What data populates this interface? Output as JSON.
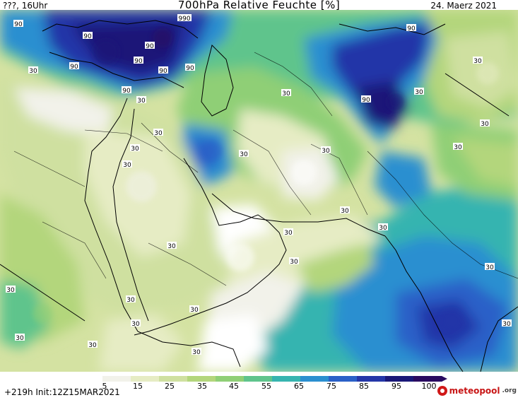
{
  "header": {
    "left": "???, 16Uhr",
    "title": "700hPa Relative Feuchte [%]",
    "date": "24. Maerz 2021"
  },
  "footer": {
    "run_info": "+219h  Init:12Z15MAR2021",
    "logo_text": "meteopool",
    "logo_tld": ".org"
  },
  "scale": {
    "ticks": [
      "5",
      "15",
      "25",
      "35",
      "45",
      "55",
      "65",
      "75",
      "85",
      "95",
      "100"
    ],
    "colors": [
      "#ffffff",
      "#f2f2ea",
      "#e6ecc4",
      "#cfe0a0",
      "#b3d67c",
      "#8fcf76",
      "#5fc48c",
      "#36b4b0",
      "#2b8fd0",
      "#2a60c8",
      "#2436a8",
      "#1a1878",
      "#2a0a60"
    ]
  },
  "contour_labels": [
    {
      "text": "90"
    },
    {
      "text": "990"
    },
    {
      "text": "90"
    },
    {
      "text": "90"
    },
    {
      "text": "90"
    },
    {
      "text": "90"
    },
    {
      "text": "90"
    },
    {
      "text": "90"
    },
    {
      "text": "90"
    },
    {
      "text": "90"
    },
    {
      "text": "90"
    },
    {
      "text": "30"
    },
    {
      "text": "30"
    },
    {
      "text": "30"
    },
    {
      "text": "30"
    },
    {
      "text": "30"
    },
    {
      "text": "30"
    },
    {
      "text": "30"
    },
    {
      "text": "30"
    },
    {
      "text": "30"
    },
    {
      "text": "30"
    },
    {
      "text": "30"
    },
    {
      "text": "30"
    },
    {
      "text": "30"
    },
    {
      "text": "30"
    },
    {
      "text": "30"
    },
    {
      "text": "30"
    },
    {
      "text": "30"
    },
    {
      "text": "30"
    },
    {
      "text": "30"
    },
    {
      "text": "30"
    },
    {
      "text": "30"
    },
    {
      "text": "30"
    },
    {
      "text": "30"
    },
    {
      "text": "30"
    },
    {
      "text": "30"
    },
    {
      "text": "30"
    }
  ]
}
